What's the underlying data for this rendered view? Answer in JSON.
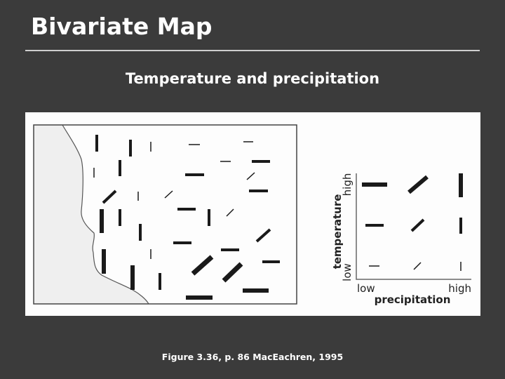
{
  "slide": {
    "title": "Bivariate Map",
    "subtitle": "Temperature and precipitation",
    "caption": "Figure 3.36, p. 86 MacEachren, 1995"
  },
  "figure": {
    "legend": {
      "y_axis_label": "temperature",
      "y_low": "low",
      "y_high": "high",
      "x_axis_label": "precipitation",
      "x_low": "low",
      "x_high": "high"
    },
    "colors": {
      "background": "#3b3b3b",
      "panel": "#ffffff",
      "land": "#f0f0f0",
      "symbol": "#1a1a1a"
    }
  }
}
